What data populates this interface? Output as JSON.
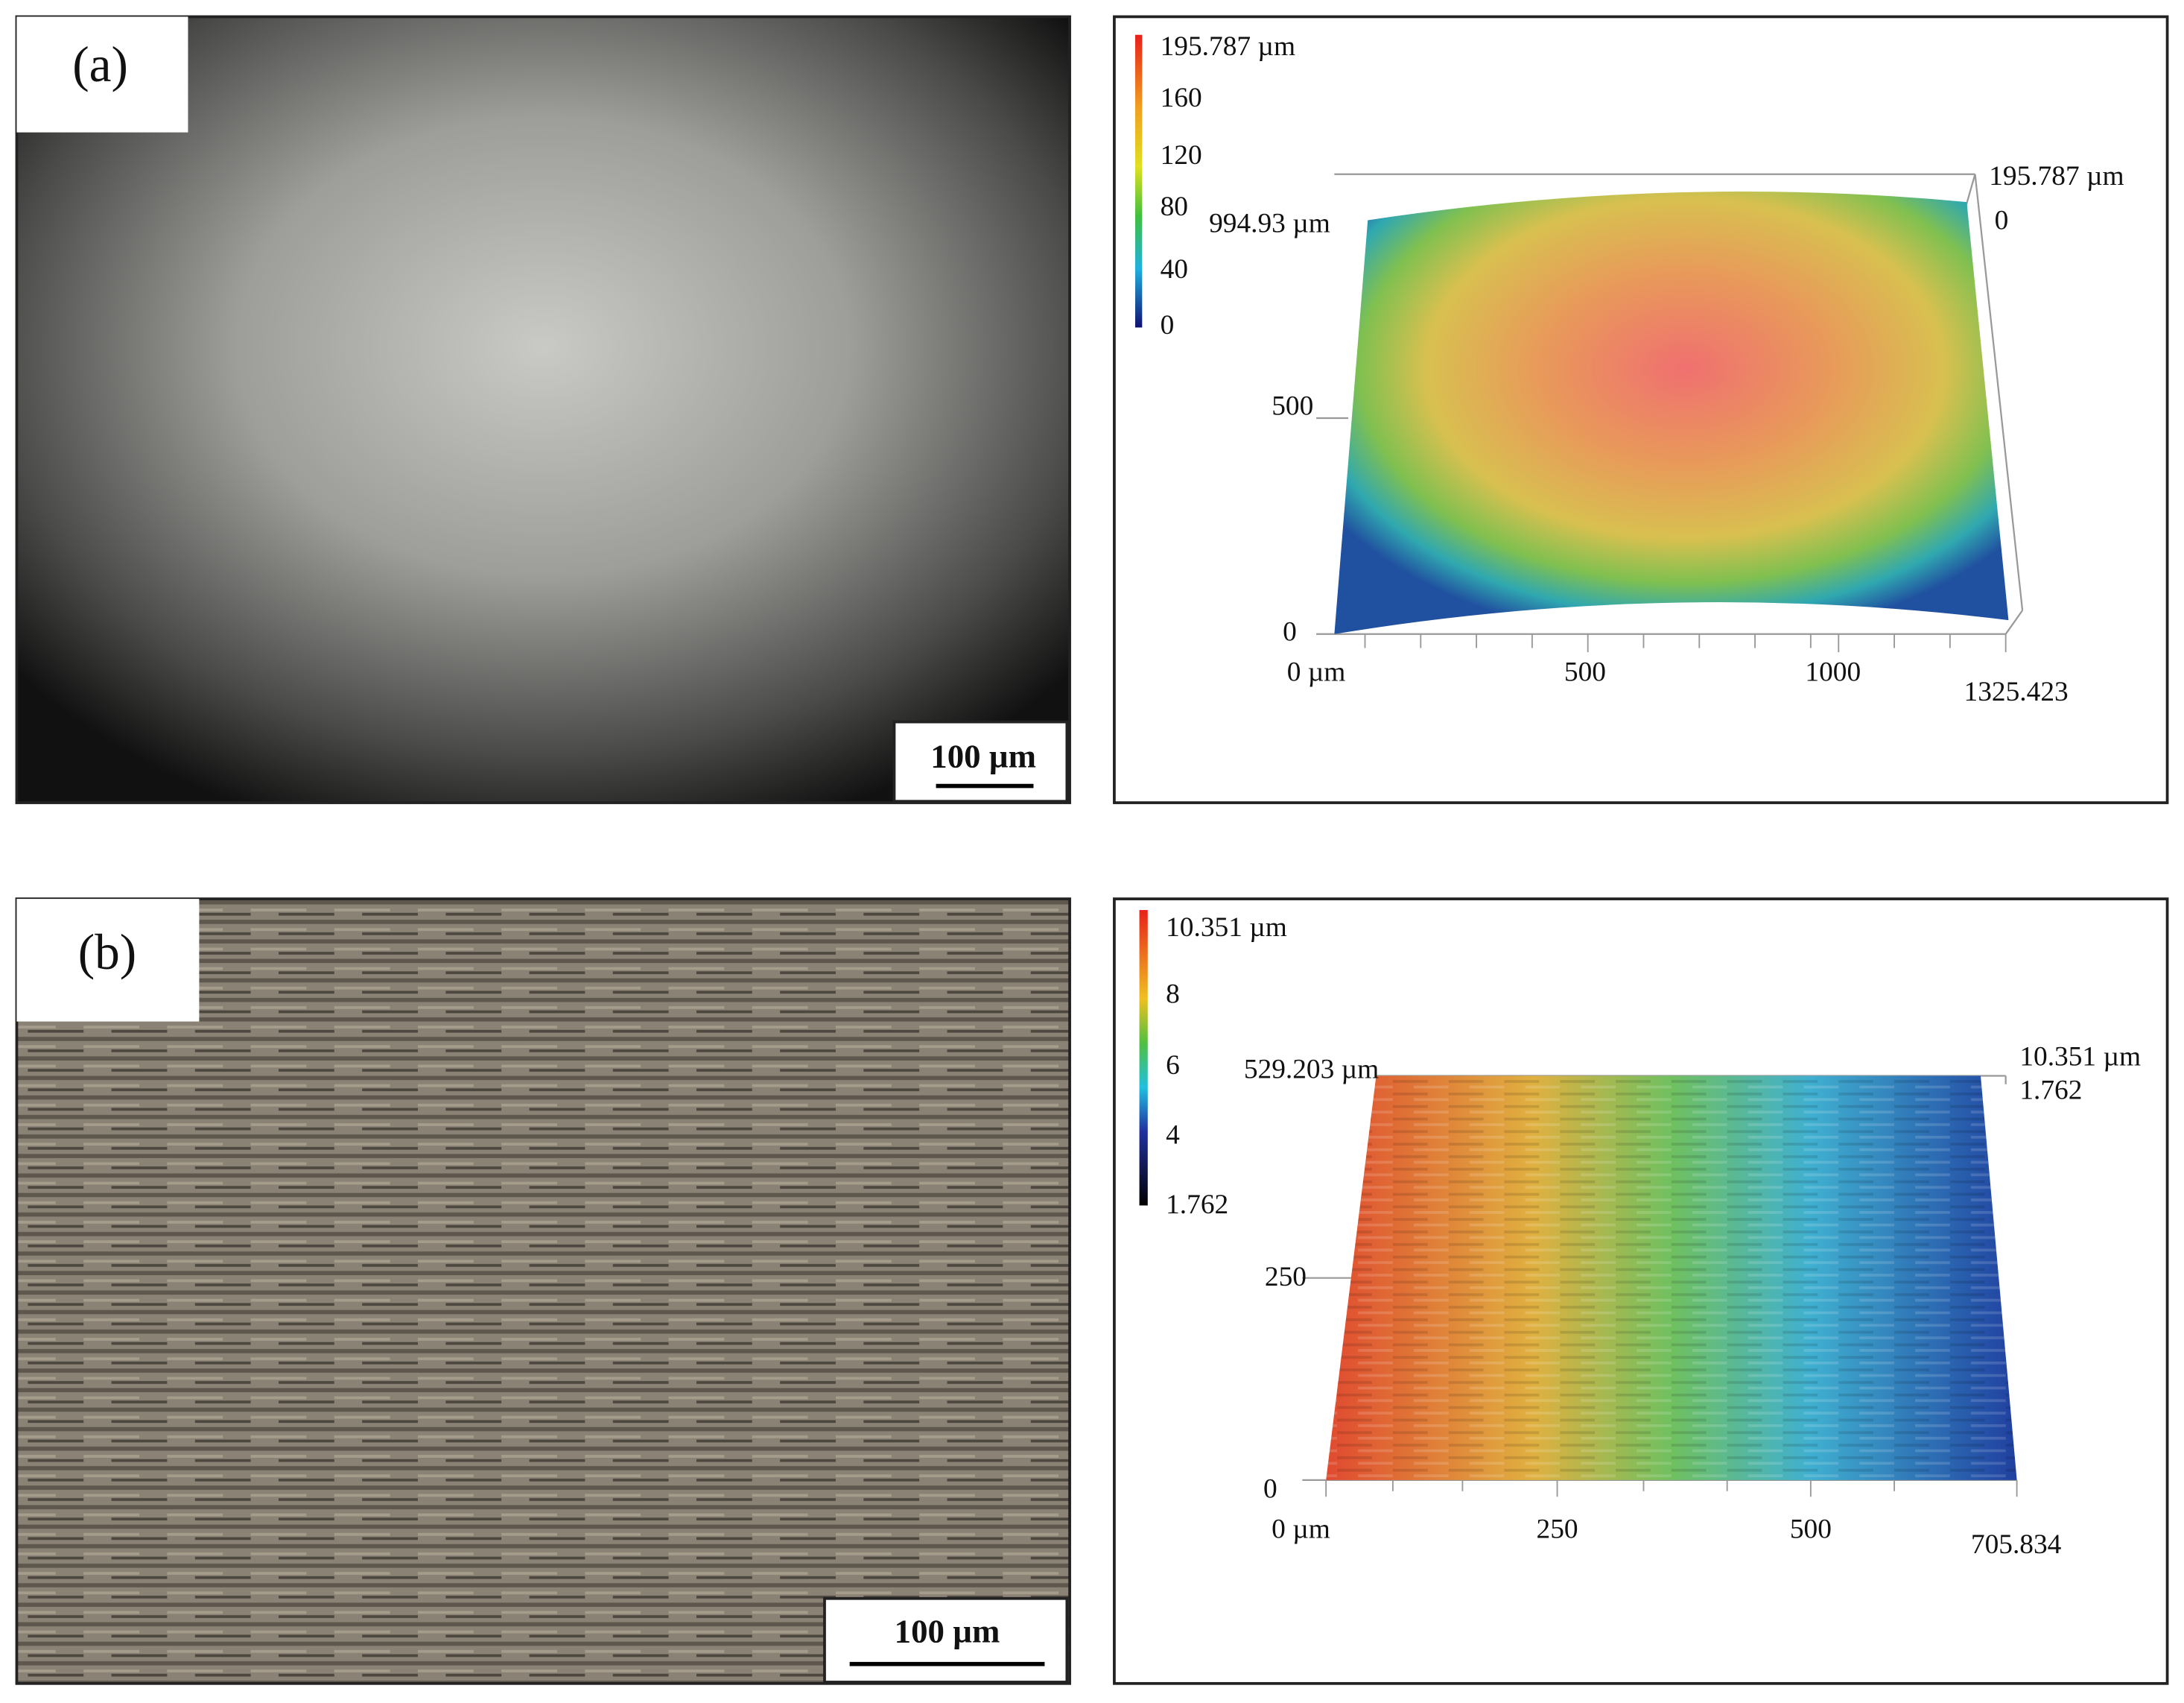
{
  "panels": [
    {
      "label": "(a)",
      "scale_bar": "100 µm",
      "profile": {
        "colorbar": [
          "195.787 µm",
          "160",
          "120",
          "80",
          "40",
          "0"
        ],
        "z_axis": [
          "195.787 µm",
          "0"
        ],
        "y_axis": [
          "994.93 µm",
          "500",
          "0"
        ],
        "x_axis": [
          "0 µm",
          "500",
          "1000",
          "1325.423"
        ]
      }
    },
    {
      "label": "(b)",
      "scale_bar": "100 µm",
      "profile": {
        "colorbar": [
          "10.351 µm",
          "8",
          "6",
          "4",
          "1.762"
        ],
        "z_axis": [
          "10.351 µm",
          "1.762"
        ],
        "y_axis": [
          "529.203 µm",
          "250",
          "0"
        ],
        "x_axis": [
          "0 µm",
          "250",
          "500",
          "705.834"
        ]
      }
    }
  ]
}
